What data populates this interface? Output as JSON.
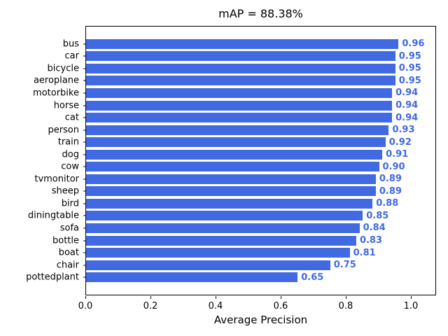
{
  "colors": {
    "bar": "#4169e1",
    "value_label": "#4169e1",
    "axis": "#000000",
    "background": "#ffffff"
  },
  "chart_data": {
    "type": "bar",
    "orientation": "horizontal",
    "title": "mAP = 88.38%",
    "xlabel": "Average Precision",
    "ylabel": "",
    "categories": [
      "bus",
      "car",
      "bicycle",
      "aeroplane",
      "motorbike",
      "horse",
      "cat",
      "person",
      "train",
      "dog",
      "cow",
      "tvmonitor",
      "sheep",
      "bird",
      "diningtable",
      "sofa",
      "bottle",
      "boat",
      "chair",
      "pottedplant"
    ],
    "values": [
      0.96,
      0.95,
      0.95,
      0.95,
      0.94,
      0.94,
      0.94,
      0.93,
      0.92,
      0.91,
      0.9,
      0.89,
      0.89,
      0.88,
      0.85,
      0.84,
      0.83,
      0.81,
      0.75,
      0.65
    ],
    "value_labels": [
      "0.96",
      "0.95",
      "0.95",
      "0.95",
      "0.94",
      "0.94",
      "0.94",
      "0.93",
      "0.92",
      "0.91",
      "0.90",
      "0.89",
      "0.89",
      "0.88",
      "0.85",
      "0.84",
      "0.83",
      "0.81",
      "0.75",
      "0.65"
    ],
    "x_ticks": [
      "0.0",
      "0.2",
      "0.4",
      "0.6",
      "0.8",
      "1.0"
    ],
    "xlim": [
      0.0,
      1.08
    ],
    "grid": false,
    "legend": "none"
  }
}
